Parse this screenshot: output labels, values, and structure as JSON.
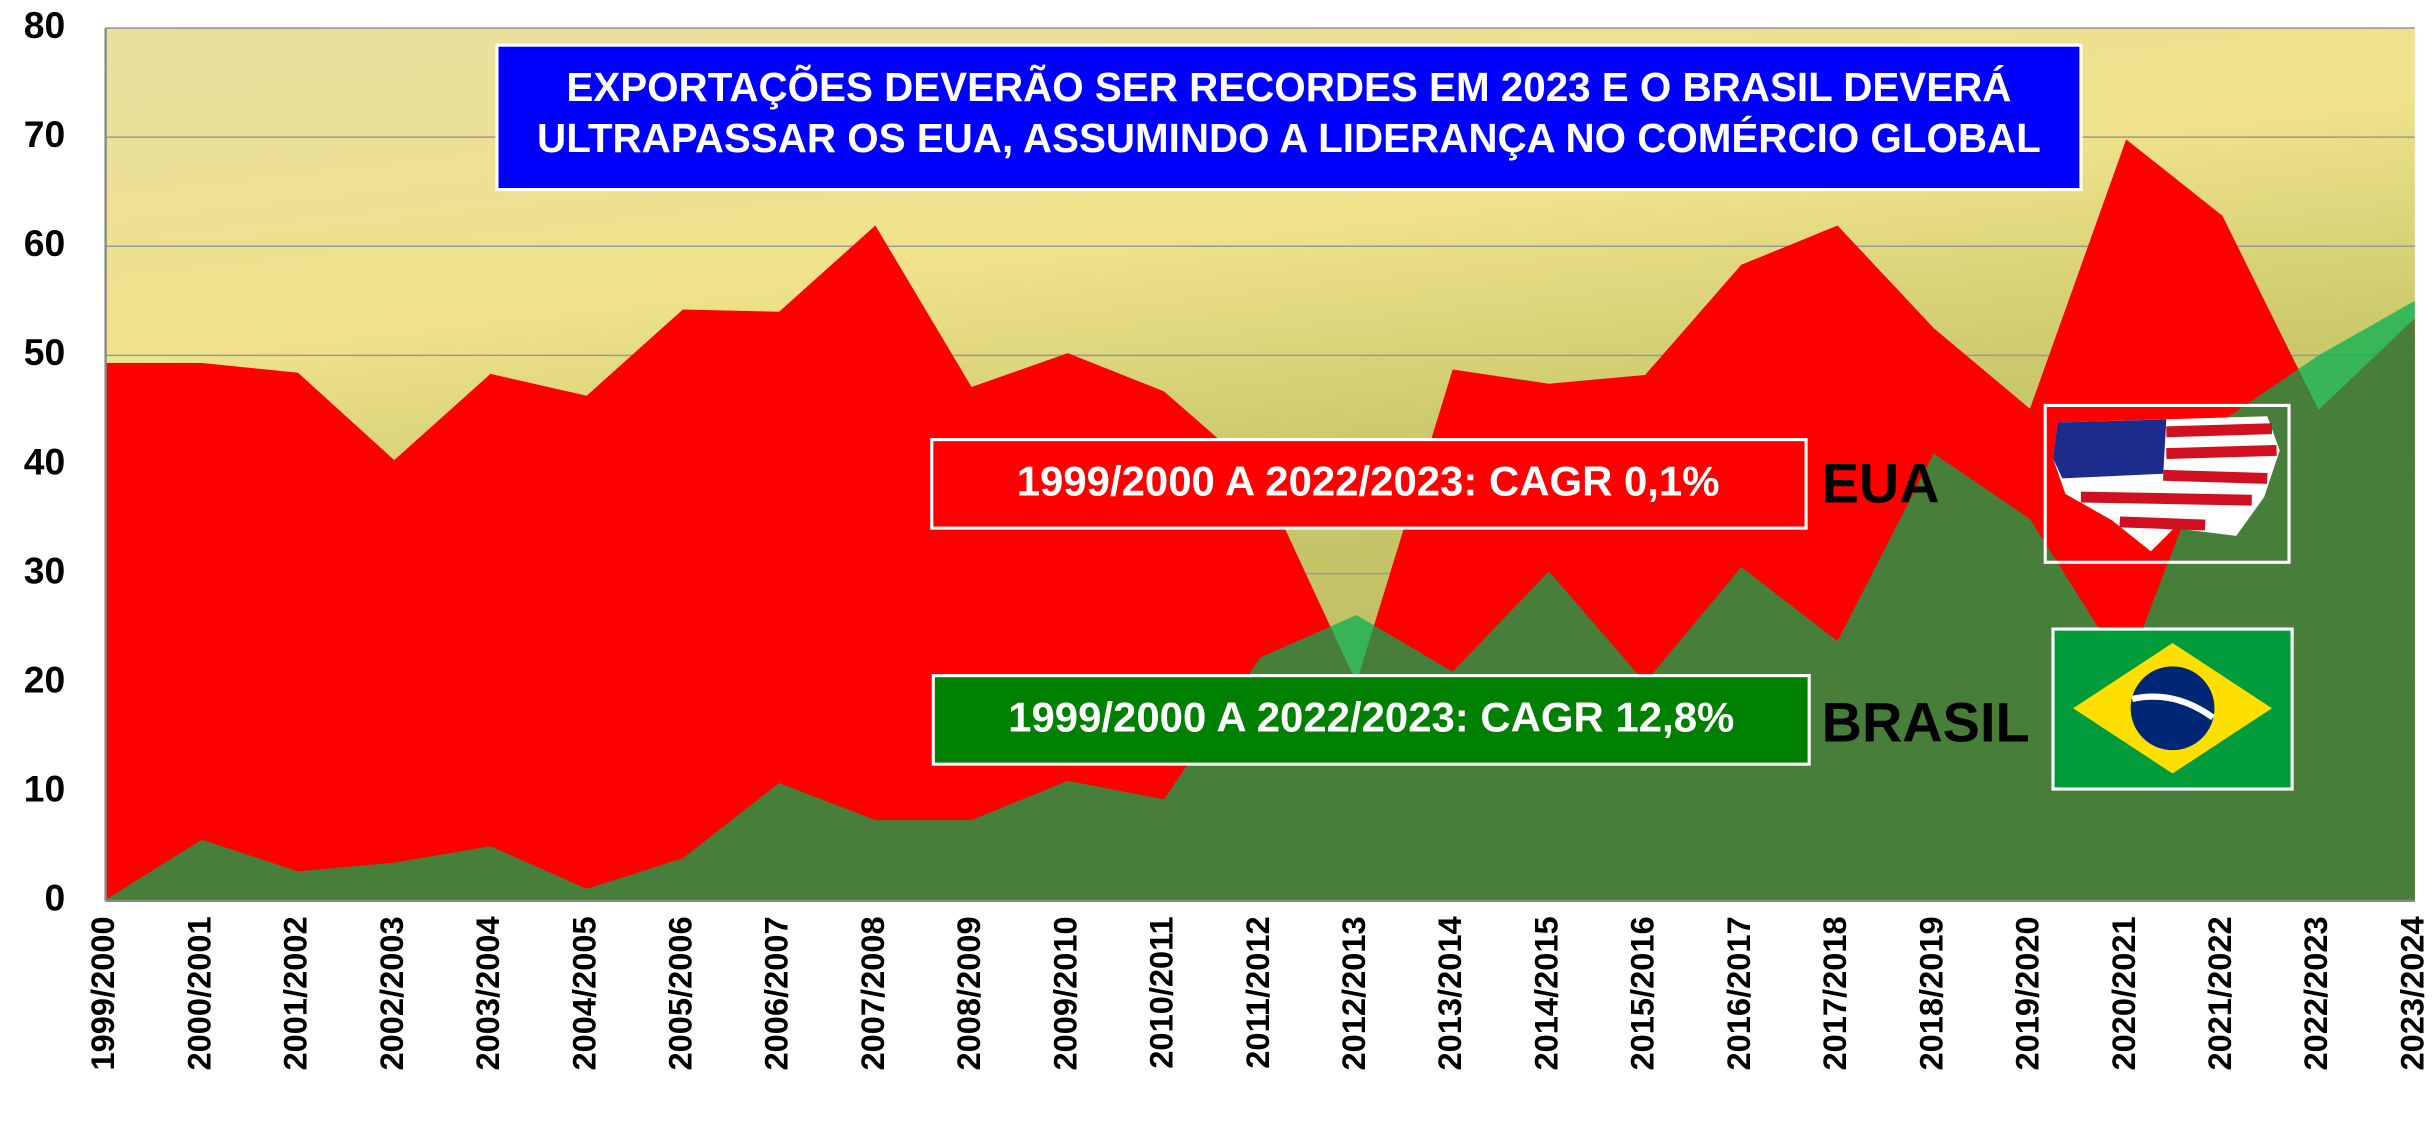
{
  "chart_data": {
    "type": "area",
    "title": [
      "EXPORTAÇÕES DEVERÃO SER RECORDES EM 2023 E O BRASIL DEVERÁ",
      "ULTRAPASSAR OS EUA, ASSUMINDO A LIDERANÇA NO COMÉRCIO GLOBAL"
    ],
    "annotations": [
      "1999/2000 A 2022/2023: CAGR 0,1%",
      "1999/2000 A 2022/2023: CAGR 12,8%"
    ],
    "categories": [
      "1999/2000",
      "2000/2001",
      "2001/2002",
      "2002/2003",
      "2003/2004",
      "2004/2005",
      "2005/2006",
      "2006/2007",
      "2007/2008",
      "2008/2009",
      "2009/2010",
      "2010/2011",
      "2011/2012",
      "2012/2013",
      "2013/2014",
      "2014/2015",
      "2015/2016",
      "2016/2017",
      "2017/2018",
      "2018/2019",
      "2019/2020",
      "2020/2021",
      "2021/2022",
      "2022/2023",
      "2023/2024"
    ],
    "series": [
      {
        "name": "EUA",
        "color": "#ff0000",
        "values": [
          49.3,
          49.3,
          48.4,
          40.4,
          48.3,
          46.3,
          54.2,
          54.0,
          61.9,
          47.1,
          50.2,
          46.7,
          39,
          20,
          48.7,
          47.4,
          48.2,
          58.3,
          61.9,
          52.5,
          45.1,
          69.8,
          62.8,
          45,
          53.4
        ]
      },
      {
        "name": "BRASIL",
        "color": "#00b050",
        "values": [
          0.1,
          5.6,
          2.7,
          3.5,
          5,
          1.1,
          3.9,
          10.8,
          7.4,
          7.4,
          11,
          9.3,
          22.3,
          26.2,
          21,
          30.2,
          20,
          30.6,
          23.8,
          41,
          35,
          21,
          44,
          50,
          55
        ]
      }
    ],
    "ylim": [
      0,
      80
    ],
    "yticks": [
      0,
      10,
      20,
      30,
      40,
      50,
      60,
      70,
      80
    ],
    "grid": true
  }
}
